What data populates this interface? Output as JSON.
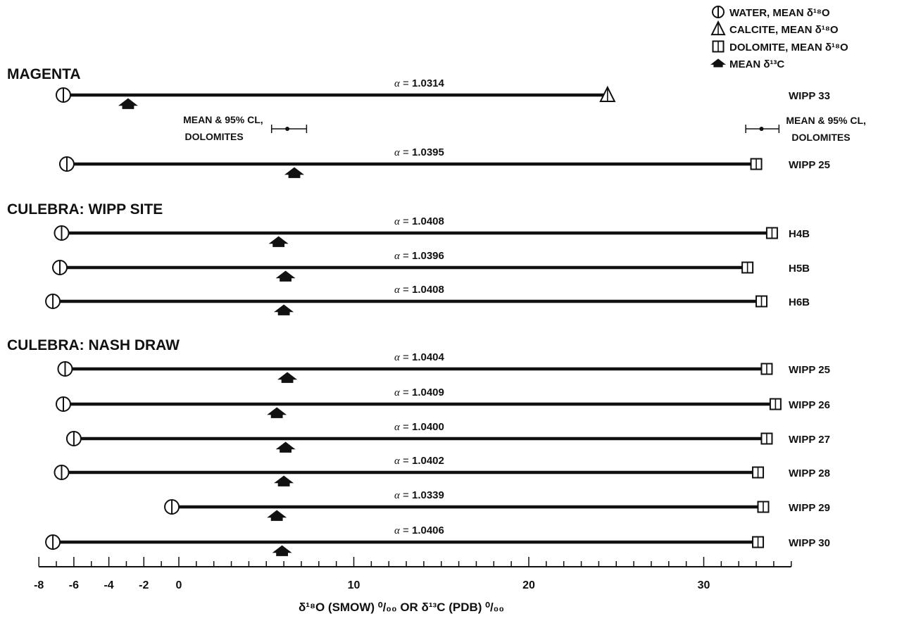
{
  "chart_data": {
    "type": "scatter",
    "xlabel": "δ¹⁸O (SMOW) ⁰/₀₀ OR δ¹³C (PDB) ⁰/₀₀",
    "xlim": [
      -8,
      35
    ],
    "x_ticks": [
      -8,
      -6,
      -4,
      -2,
      0,
      10,
      20,
      30
    ],
    "legend": [
      {
        "symbol": "circle",
        "label": "WATER, MEAN δ¹⁸O"
      },
      {
        "symbol": "triangle",
        "label": "CALCITE, MEAN δ¹⁸O"
      },
      {
        "symbol": "square",
        "label": "DOLOMITE, MEAN δ¹⁸O"
      },
      {
        "symbol": "arrow",
        "label": "MEAN δ¹³C"
      }
    ],
    "legend_position": "top-right",
    "groups": [
      {
        "name": "MAGENTA",
        "rows": [
          {
            "well": "WIPP 33",
            "water_d18O": -6.6,
            "mineral": "calcite",
            "mineral_d18O": 24.5,
            "d13C": -2.9,
            "alpha": "1.0314"
          },
          {
            "well": "WIPP 25",
            "water_d18O": -6.4,
            "mineral": "dolomite",
            "mineral_d18O": 33.0,
            "d13C": 6.6,
            "alpha": "1.0395"
          }
        ]
      },
      {
        "name": "CULEBRA:  WIPP SITE",
        "rows": [
          {
            "well": "H4B",
            "water_d18O": -6.7,
            "mineral": "dolomite",
            "mineral_d18O": 33.9,
            "d13C": 5.7,
            "alpha": "1.0408"
          },
          {
            "well": "H5B",
            "water_d18O": -6.8,
            "mineral": "dolomite",
            "mineral_d18O": 32.5,
            "d13C": 6.1,
            "alpha": "1.0396"
          },
          {
            "well": "H6B",
            "water_d18O": -7.2,
            "mineral": "dolomite",
            "mineral_d18O": 33.3,
            "d13C": 6.0,
            "alpha": "1.0408"
          }
        ]
      },
      {
        "name": "CULEBRA:  NASH DRAW",
        "rows": [
          {
            "well": "WIPP 25",
            "water_d18O": -6.5,
            "mineral": "dolomite",
            "mineral_d18O": 33.6,
            "d13C": 6.2,
            "alpha": "1.0404"
          },
          {
            "well": "WIPP 26",
            "water_d18O": -6.6,
            "mineral": "dolomite",
            "mineral_d18O": 34.1,
            "d13C": 5.6,
            "alpha": "1.0409"
          },
          {
            "well": "WIPP 27",
            "water_d18O": -6.0,
            "mineral": "dolomite",
            "mineral_d18O": 33.6,
            "d13C": 6.1,
            "alpha": "1.0400"
          },
          {
            "well": "WIPP 28",
            "water_d18O": -6.7,
            "mineral": "dolomite",
            "mineral_d18O": 33.1,
            "d13C": 6.0,
            "alpha": "1.0402"
          },
          {
            "well": "WIPP 29",
            "water_d18O": -0.4,
            "mineral": "dolomite",
            "mineral_d18O": 33.4,
            "d13C": 5.6,
            "alpha": "1.0339"
          },
          {
            "well": "WIPP 30",
            "water_d18O": -7.2,
            "mineral": "dolomite",
            "mineral_d18O": 33.1,
            "d13C": 5.9,
            "alpha": "1.0406"
          }
        ]
      }
    ],
    "annotations": [
      {
        "text": [
          "MEAN & 95% CL,",
          "DOLOMITES"
        ],
        "mean": 6.2,
        "ci": [
          5.3,
          7.3
        ]
      },
      {
        "text": [
          "MEAN & 95% CL,",
          "DOLOMITES"
        ],
        "mean": 33.3,
        "ci": [
          32.4,
          34.3
        ]
      }
    ]
  }
}
